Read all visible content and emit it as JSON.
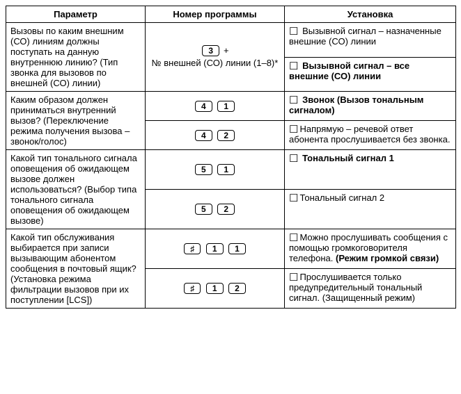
{
  "header": {
    "param": "Параметр",
    "prog": "Номер программы",
    "setting": "Установка"
  },
  "rows": [
    {
      "param": "Вызовы по каким внешним (СО) линиям должны поступать на данную внутреннюю линию?\n(Тип звонка для вызовов по внешней (СО) линии)",
      "prog_key": "3",
      "prog_extra": "№ внешней (СО) линии (1–8)*",
      "settings": [
        {
          "text": " Вызывной сигнал – назначенные внешние (СО) линии",
          "bold": false
        },
        {
          "text": " Вызывной сигнал – все внешние (СО) линии",
          "bold": true
        }
      ]
    },
    {
      "param": "Каким образом должен приниматься внутренний вызов?\n(Переключение режима получения вызова – звонок/голос)",
      "options": [
        {
          "keys": [
            "4",
            "1"
          ],
          "text": " Звонок (Вызов тональным сигналом)",
          "bold": true
        },
        {
          "keys": [
            "4",
            "2"
          ],
          "text": "Напрямую – речевой ответ абонента прослушивается без звонка.",
          "bold": false
        }
      ]
    },
    {
      "param": "Какой тип тонального сигнала оповещения об ожидающем вызове должен использоваться?\n(Выбор типа тонального сигнала оповещения об ожидающем вызове)",
      "options": [
        {
          "keys": [
            "5",
            "1"
          ],
          "text": " Тональный сигнал 1",
          "bold": true
        },
        {
          "keys": [
            "5",
            "2"
          ],
          "text": "Тональный сигнал 2",
          "bold": false
        }
      ]
    },
    {
      "param": "Какой тип обслуживания выбирается при записи вызывающим абонентом сообщения в почтовый ящик?\n(Установка режима фильтрации вызовов при их поступлении [LCS])",
      "options": [
        {
          "keys_hash": true,
          "keys": [
            "1",
            "1"
          ],
          "text_pre": "Можно прослушивать сообщения с помощью громкоговорителя телефона. ",
          "text_bold": "(Режим громкой связи)",
          "bold": false
        },
        {
          "keys_hash": true,
          "keys": [
            "1",
            "2"
          ],
          "text": "Прослушивается только предупредительный тональный сигнал. (Защищенный режим)",
          "bold": false
        }
      ]
    }
  ]
}
